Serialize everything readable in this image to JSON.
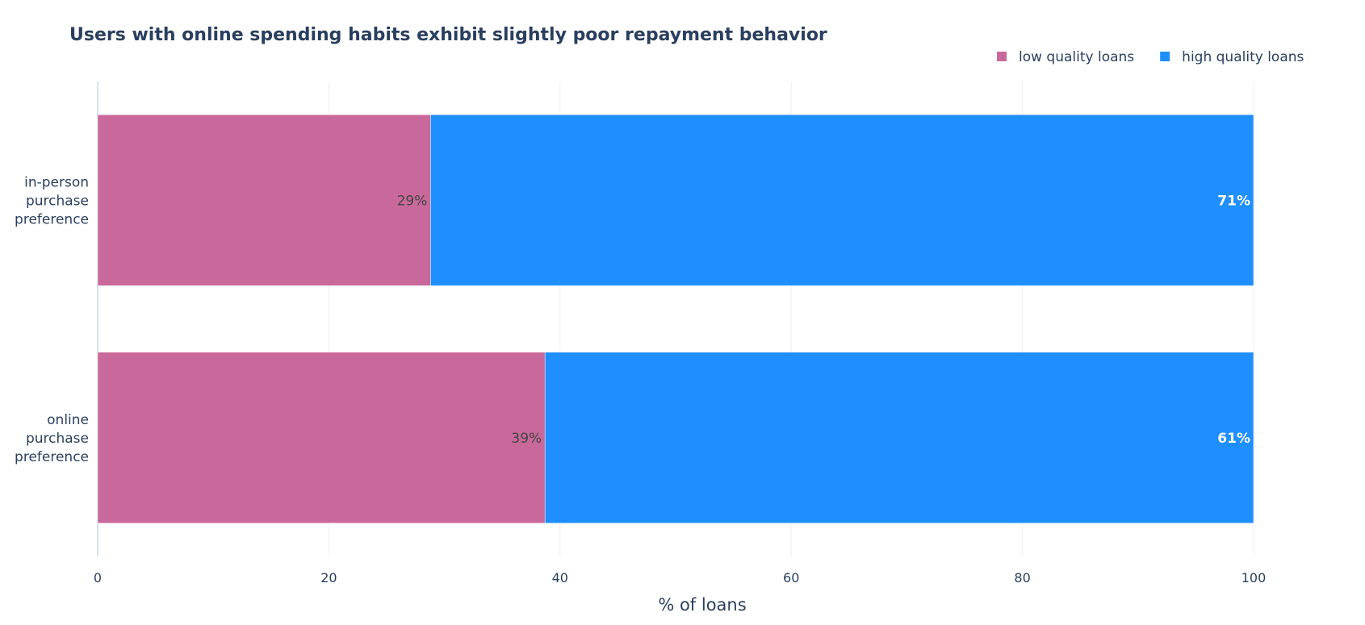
{
  "chart_data": {
    "type": "bar",
    "orientation": "horizontal",
    "barmode": "stack",
    "title": "Users with online spending habits exhibit slightly poor repayment behavior",
    "xlabel": "% of loans",
    "ylabel": "",
    "xlim": [
      0,
      100
    ],
    "x_ticks": [
      "0",
      "20",
      "40",
      "60",
      "80",
      "100"
    ],
    "categories": [
      [
        "in-person",
        "purchase",
        "preference"
      ],
      [
        "online",
        "purchase",
        "preference"
      ]
    ],
    "series": [
      {
        "name": "low quality loans",
        "color": "#c9699b",
        "values": [
          28.8,
          38.7
        ],
        "labels": [
          "29%",
          "39%"
        ]
      },
      {
        "name": "high quality loans",
        "color": "#1f8fff",
        "values": [
          71.2,
          61.3
        ],
        "labels": [
          "71%",
          "61%"
        ]
      }
    ],
    "legend": "top-right",
    "grid": true
  }
}
